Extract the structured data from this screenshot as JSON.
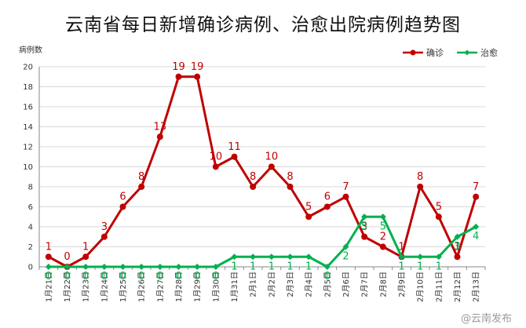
{
  "chart_data": {
    "type": "line",
    "title": "云南省每日新增确诊病例、治愈出院病例趋势图",
    "ylabel": "病例数",
    "xlabel": "",
    "ylim": [
      0,
      20
    ],
    "yticks": [
      0,
      2,
      4,
      6,
      8,
      10,
      12,
      14,
      16,
      18,
      20
    ],
    "grid": "horizontal",
    "legend_position": "top-right",
    "categories": [
      "1月21日",
      "1月22日",
      "1月23日",
      "1月24日",
      "1月25日",
      "1月26日",
      "1月27日",
      "1月28日",
      "1月29日",
      "1月30日",
      "1月31日",
      "2月1日",
      "2月2日",
      "2月3日",
      "2月4日",
      "2月5日",
      "2月6日",
      "2月7日",
      "2月8日",
      "2月9日",
      "2月10日",
      "2月11日",
      "2月12日",
      "2月13日"
    ],
    "series": [
      {
        "name": "确诊",
        "color": "#c00000",
        "values": [
          1,
          0,
          1,
          3,
          6,
          8,
          13,
          19,
          19,
          10,
          11,
          8,
          10,
          8,
          5,
          6,
          7,
          3,
          2,
          1,
          8,
          5,
          1,
          7
        ]
      },
      {
        "name": "治愈",
        "color": "#00b050",
        "values": [
          0,
          0,
          0,
          0,
          0,
          0,
          0,
          0,
          0,
          0,
          1,
          1,
          1,
          1,
          1,
          0,
          2,
          5,
          5,
          1,
          1,
          1,
          3,
          4
        ]
      }
    ]
  },
  "watermark": "@云南发布"
}
